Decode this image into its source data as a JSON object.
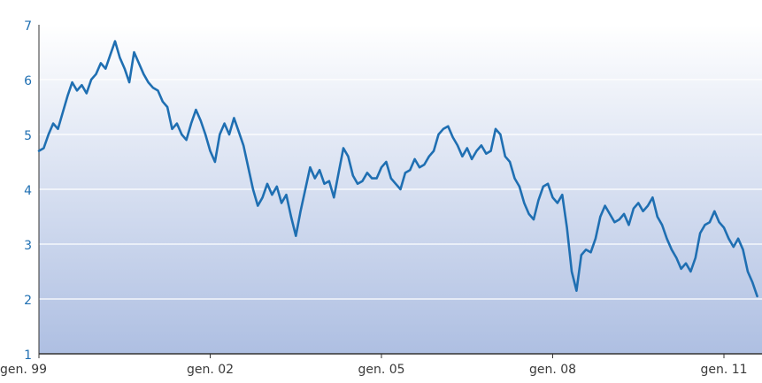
{
  "chart_data": {
    "type": "line",
    "title": "",
    "xlabel": "",
    "ylabel": "",
    "x_range": [
      "1999-01",
      "2011-09"
    ],
    "ylim": [
      1,
      7
    ],
    "yticks": [
      1,
      2,
      3,
      4,
      5,
      6,
      7
    ],
    "ytick_labels": [
      "1",
      "2",
      "3",
      "4",
      "5",
      "6",
      "7"
    ],
    "xticks": [
      "1999-01",
      "2002-01",
      "2005-01",
      "2008-01",
      "2011-01"
    ],
    "xtick_labels": [
      "gen. 99",
      "gen. 02",
      "gen. 05",
      "gen. 08",
      "gen. 11"
    ],
    "grid": "horizontal",
    "colors": {
      "line": "#1f6fb2",
      "bg_top": "#ffffff",
      "bg_bottom": "#aebfe2",
      "grid": "#ffffff",
      "axis": "#333333"
    },
    "series": [
      {
        "points": [
          [
            "1999-01",
            4.7
          ],
          [
            "1999-02",
            4.75
          ],
          [
            "1999-03",
            5.0
          ],
          [
            "1999-04",
            5.2
          ],
          [
            "1999-05",
            5.1
          ],
          [
            "1999-06",
            5.4
          ],
          [
            "1999-07",
            5.7
          ],
          [
            "1999-08",
            5.95
          ],
          [
            "1999-09",
            5.8
          ],
          [
            "1999-10",
            5.9
          ],
          [
            "1999-11",
            5.75
          ],
          [
            "1999-12",
            6.0
          ],
          [
            "2000-01",
            6.1
          ],
          [
            "2000-02",
            6.3
          ],
          [
            "2000-03",
            6.2
          ],
          [
            "2000-04",
            6.45
          ],
          [
            "2000-05",
            6.7
          ],
          [
            "2000-06",
            6.4
          ],
          [
            "2000-07",
            6.2
          ],
          [
            "2000-08",
            5.95
          ],
          [
            "2000-09",
            6.5
          ],
          [
            "2000-10",
            6.3
          ],
          [
            "2000-11",
            6.1
          ],
          [
            "2000-12",
            5.95
          ],
          [
            "2001-01",
            5.85
          ],
          [
            "2001-02",
            5.8
          ],
          [
            "2001-03",
            5.6
          ],
          [
            "2001-04",
            5.5
          ],
          [
            "2001-05",
            5.1
          ],
          [
            "2001-06",
            5.2
          ],
          [
            "2001-07",
            5.0
          ],
          [
            "2001-08",
            4.9
          ],
          [
            "2001-09",
            5.2
          ],
          [
            "2001-10",
            5.45
          ],
          [
            "2001-11",
            5.25
          ],
          [
            "2001-12",
            5.0
          ],
          [
            "2002-01",
            4.7
          ],
          [
            "2002-02",
            4.5
          ],
          [
            "2002-03",
            5.0
          ],
          [
            "2002-04",
            5.2
          ],
          [
            "2002-05",
            5.0
          ],
          [
            "2002-06",
            5.3
          ],
          [
            "2002-07",
            5.05
          ],
          [
            "2002-08",
            4.8
          ],
          [
            "2002-09",
            4.4
          ],
          [
            "2002-10",
            4.0
          ],
          [
            "2002-11",
            3.7
          ],
          [
            "2002-12",
            3.85
          ],
          [
            "2003-01",
            4.1
          ],
          [
            "2003-02",
            3.9
          ],
          [
            "2003-03",
            4.05
          ],
          [
            "2003-04",
            3.75
          ],
          [
            "2003-05",
            3.9
          ],
          [
            "2003-06",
            3.5
          ],
          [
            "2003-07",
            3.15
          ],
          [
            "2003-08",
            3.6
          ],
          [
            "2003-09",
            4.0
          ],
          [
            "2003-10",
            4.4
          ],
          [
            "2003-11",
            4.2
          ],
          [
            "2003-12",
            4.35
          ],
          [
            "2004-01",
            4.1
          ],
          [
            "2004-02",
            4.15
          ],
          [
            "2004-03",
            3.85
          ],
          [
            "2004-04",
            4.3
          ],
          [
            "2004-05",
            4.75
          ],
          [
            "2004-06",
            4.6
          ],
          [
            "2004-07",
            4.25
          ],
          [
            "2004-08",
            4.1
          ],
          [
            "2004-09",
            4.15
          ],
          [
            "2004-10",
            4.3
          ],
          [
            "2004-11",
            4.2
          ],
          [
            "2004-12",
            4.2
          ],
          [
            "2005-01",
            4.4
          ],
          [
            "2005-02",
            4.5
          ],
          [
            "2005-03",
            4.2
          ],
          [
            "2005-04",
            4.1
          ],
          [
            "2005-05",
            4.0
          ],
          [
            "2005-06",
            4.3
          ],
          [
            "2005-07",
            4.35
          ],
          [
            "2005-08",
            4.55
          ],
          [
            "2005-09",
            4.4
          ],
          [
            "2005-10",
            4.45
          ],
          [
            "2005-11",
            4.6
          ],
          [
            "2005-12",
            4.7
          ],
          [
            "2006-01",
            5.0
          ],
          [
            "2006-02",
            5.1
          ],
          [
            "2006-03",
            5.15
          ],
          [
            "2006-04",
            4.95
          ],
          [
            "2006-05",
            4.8
          ],
          [
            "2006-06",
            4.6
          ],
          [
            "2006-07",
            4.75
          ],
          [
            "2006-08",
            4.55
          ],
          [
            "2006-09",
            4.7
          ],
          [
            "2006-10",
            4.8
          ],
          [
            "2006-11",
            4.65
          ],
          [
            "2006-12",
            4.7
          ],
          [
            "2007-01",
            5.1
          ],
          [
            "2007-02",
            5.0
          ],
          [
            "2007-03",
            4.6
          ],
          [
            "2007-04",
            4.5
          ],
          [
            "2007-05",
            4.2
          ],
          [
            "2007-06",
            4.05
          ],
          [
            "2007-07",
            3.75
          ],
          [
            "2007-08",
            3.55
          ],
          [
            "2007-09",
            3.45
          ],
          [
            "2007-10",
            3.8
          ],
          [
            "2007-11",
            4.05
          ],
          [
            "2007-12",
            4.1
          ],
          [
            "2008-01",
            3.85
          ],
          [
            "2008-02",
            3.75
          ],
          [
            "2008-03",
            3.9
          ],
          [
            "2008-04",
            3.3
          ],
          [
            "2008-05",
            2.5
          ],
          [
            "2008-06",
            2.15
          ],
          [
            "2008-07",
            2.8
          ],
          [
            "2008-08",
            2.9
          ],
          [
            "2008-09",
            2.85
          ],
          [
            "2008-10",
            3.1
          ],
          [
            "2008-11",
            3.5
          ],
          [
            "2008-12",
            3.7
          ],
          [
            "2009-01",
            3.55
          ],
          [
            "2009-02",
            3.4
          ],
          [
            "2009-03",
            3.45
          ],
          [
            "2009-04",
            3.55
          ],
          [
            "2009-05",
            3.35
          ],
          [
            "2009-06",
            3.65
          ],
          [
            "2009-07",
            3.75
          ],
          [
            "2009-08",
            3.6
          ],
          [
            "2009-09",
            3.7
          ],
          [
            "2009-10",
            3.85
          ],
          [
            "2009-11",
            3.5
          ],
          [
            "2009-12",
            3.35
          ],
          [
            "2010-01",
            3.1
          ],
          [
            "2010-02",
            2.9
          ],
          [
            "2010-03",
            2.75
          ],
          [
            "2010-04",
            2.55
          ],
          [
            "2010-05",
            2.65
          ],
          [
            "2010-06",
            2.5
          ],
          [
            "2010-07",
            2.75
          ],
          [
            "2010-08",
            3.2
          ],
          [
            "2010-09",
            3.35
          ],
          [
            "2010-10",
            3.4
          ],
          [
            "2010-11",
            3.6
          ],
          [
            "2010-12",
            3.4
          ],
          [
            "2011-01",
            3.3
          ],
          [
            "2011-02",
            3.1
          ],
          [
            "2011-03",
            2.95
          ],
          [
            "2011-04",
            3.1
          ],
          [
            "2011-05",
            2.9
          ],
          [
            "2011-06",
            2.5
          ],
          [
            "2011-07",
            2.3
          ],
          [
            "2011-08",
            2.05
          ]
        ]
      }
    ]
  }
}
